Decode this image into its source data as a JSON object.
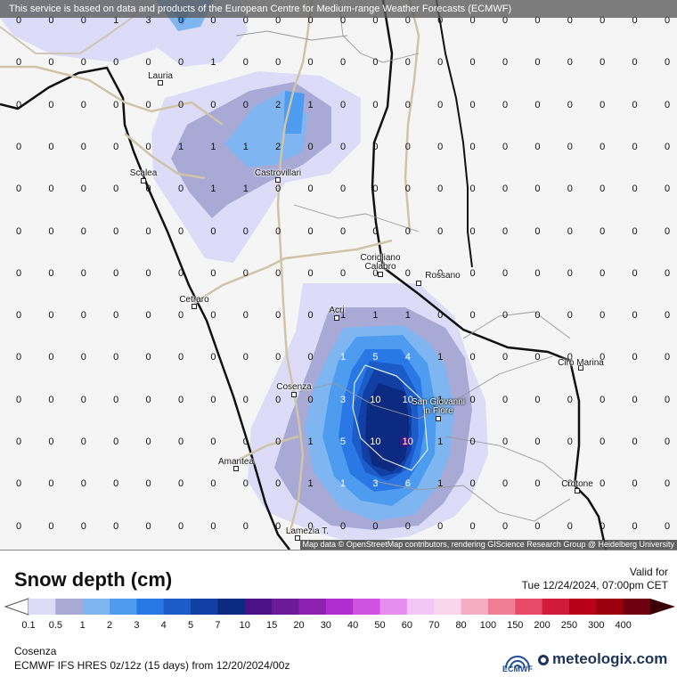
{
  "notice": "This service is based on data and products of the European Centre for Medium-range Weather Forecasts (ECMWF)",
  "map_attribution": "Map data © OpenStreetMap contributors, rendering GIScience Research Group @ Heidelberg University",
  "cities": [
    "Lauria",
    "Scalea",
    "Castrovillari",
    "Corigliano Calabro",
    "Rossano",
    "Cetraro",
    "Acri",
    "Cirò Marina",
    "Cosenza",
    "San Giovanni in Fiore",
    "Amantea",
    "Crotone",
    "Lamezia T."
  ],
  "grid_values": [
    [
      "0",
      "0",
      "0",
      "1",
      "3",
      "0",
      "0",
      "0",
      "0",
      "0",
      "0",
      "0",
      "0",
      "0",
      "0",
      "0",
      "0",
      "0",
      "0",
      "0",
      "0"
    ],
    [
      "0",
      "0",
      "0",
      "0",
      "0",
      "0",
      "1",
      "0",
      "0",
      "0",
      "0",
      "0",
      "0",
      "0",
      "0",
      "0",
      "0",
      "0",
      "0",
      "0",
      "0"
    ],
    [
      "0",
      "0",
      "0",
      "0",
      "0",
      "0",
      "0",
      "0",
      "2",
      "1",
      "0",
      "0",
      "0",
      "0",
      "0",
      "0",
      "0",
      "0",
      "0",
      "0",
      "0"
    ],
    [
      "0",
      "0",
      "0",
      "0",
      "0",
      "1",
      "1",
      "1",
      "2",
      "0",
      "0",
      "0",
      "0",
      "0",
      "0",
      "0",
      "0",
      "0",
      "0",
      "0",
      "0"
    ],
    [
      "0",
      "0",
      "0",
      "0",
      "0",
      "0",
      "1",
      "1",
      "0",
      "0",
      "0",
      "0",
      "0",
      "0",
      "0",
      "0",
      "0",
      "0",
      "0",
      "0",
      "0"
    ],
    [
      "0",
      "0",
      "0",
      "0",
      "0",
      "0",
      "0",
      "0",
      "0",
      "0",
      "0",
      "0",
      "0",
      "0",
      "0",
      "0",
      "0",
      "0",
      "0",
      "0",
      "0"
    ],
    [
      "0",
      "0",
      "0",
      "0",
      "0",
      "0",
      "0",
      "0",
      "0",
      "0",
      "0",
      "0",
      "0",
      "0",
      "0",
      "0",
      "0",
      "0",
      "0",
      "0",
      "0"
    ],
    [
      "0",
      "0",
      "0",
      "0",
      "0",
      "0",
      "0",
      "0",
      "0",
      "0",
      "1",
      "1",
      "1",
      "0",
      "0",
      "0",
      "0",
      "0",
      "0",
      "0",
      "0"
    ],
    [
      "0",
      "0",
      "0",
      "0",
      "0",
      "0",
      "0",
      "0",
      "0",
      "0",
      "1",
      "5",
      "4",
      "1",
      "0",
      "0",
      "0",
      "0",
      "0",
      "0",
      "0"
    ],
    [
      "0",
      "0",
      "0",
      "0",
      "0",
      "0",
      "0",
      "0",
      "0",
      "0",
      "3",
      "10",
      "10",
      "1",
      "0",
      "0",
      "0",
      "0",
      "0",
      "0",
      "0"
    ],
    [
      "0",
      "0",
      "0",
      "0",
      "0",
      "0",
      "0",
      "0",
      "0",
      "1",
      "5",
      "10",
      "10",
      "1",
      "0",
      "0",
      "0",
      "0",
      "0",
      "0",
      "0"
    ],
    [
      "0",
      "0",
      "0",
      "0",
      "0",
      "0",
      "0",
      "0",
      "0",
      "1",
      "1",
      "3",
      "6",
      "1",
      "0",
      "0",
      "0",
      "0",
      "0",
      "0",
      "0"
    ],
    [
      "0",
      "0",
      "0",
      "0",
      "0",
      "0",
      "0",
      "0",
      "0",
      "0",
      "0",
      "0",
      "0",
      "0",
      "0",
      "0",
      "0",
      "0",
      "0",
      "0",
      "0"
    ]
  ],
  "legend": {
    "title": "Snow depth (cm)",
    "valid_label": "Valid for",
    "valid_time": "Tue 12/24/2024, 07:00pm CET",
    "ticks": [
      "0.1",
      "0.5",
      "1",
      "2",
      "3",
      "4",
      "5",
      "7",
      "10",
      "15",
      "20",
      "30",
      "40",
      "50",
      "60",
      "70",
      "80",
      "100",
      "150",
      "200",
      "250",
      "300",
      "400"
    ],
    "colors": [
      "#dcdcf8",
      "#a9a9d6",
      "#7fb6f2",
      "#4d9cf0",
      "#2a78e6",
      "#1c5cc8",
      "#123fa4",
      "#0b2a80",
      "#4a1286",
      "#6d1a98",
      "#8d22b0",
      "#b02ed0",
      "#cf52e0",
      "#e58ef0",
      "#f3c6f8",
      "#f9d6ec",
      "#f5adc4",
      "#f07f95",
      "#e94a68",
      "#d01b3c",
      "#b80018",
      "#9a000c",
      "#6f0010",
      "#3a0008"
    ]
  },
  "location": "Cosenza",
  "model": "ECMWF IFS HRES 0z/12z (15 days) from 12/20/2024/00z",
  "logos": {
    "ecmwf": "ECMWF",
    "brand": "meteologix.com"
  }
}
